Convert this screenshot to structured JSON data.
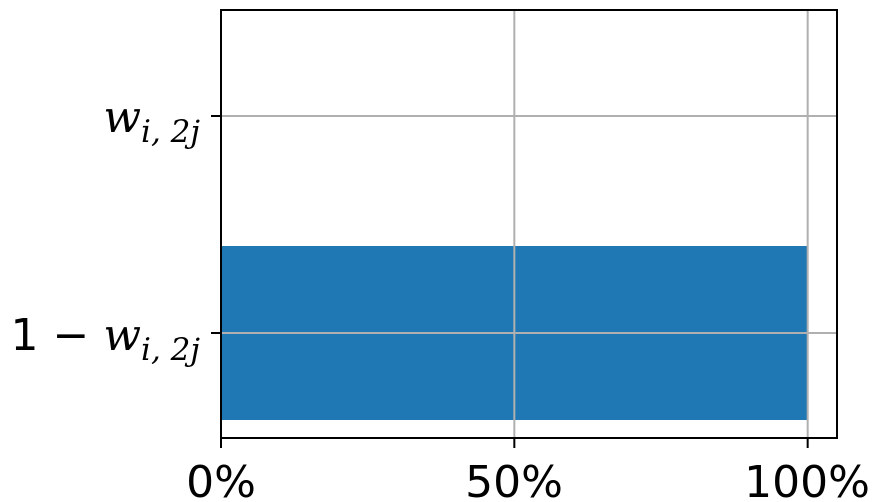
{
  "chart_data": {
    "type": "bar",
    "orientation": "horizontal",
    "categories": [
      "w_{i,2j}",
      "1 − w_{i,2j}"
    ],
    "values": [
      0,
      100
    ],
    "xlim": [
      0,
      105
    ],
    "xticks": [
      0,
      50,
      100
    ],
    "xtick_labels": [
      "0%",
      "50%",
      "100%"
    ],
    "grid": true,
    "bar_color": "#1f77b4",
    "grid_color": "#b0b0b0",
    "ytick_labels": {
      "top": {
        "base": "w",
        "sub": "i, 2j"
      },
      "bottom": {
        "prefix": "1 − ",
        "base": "w",
        "sub": "i, 2j"
      }
    }
  }
}
